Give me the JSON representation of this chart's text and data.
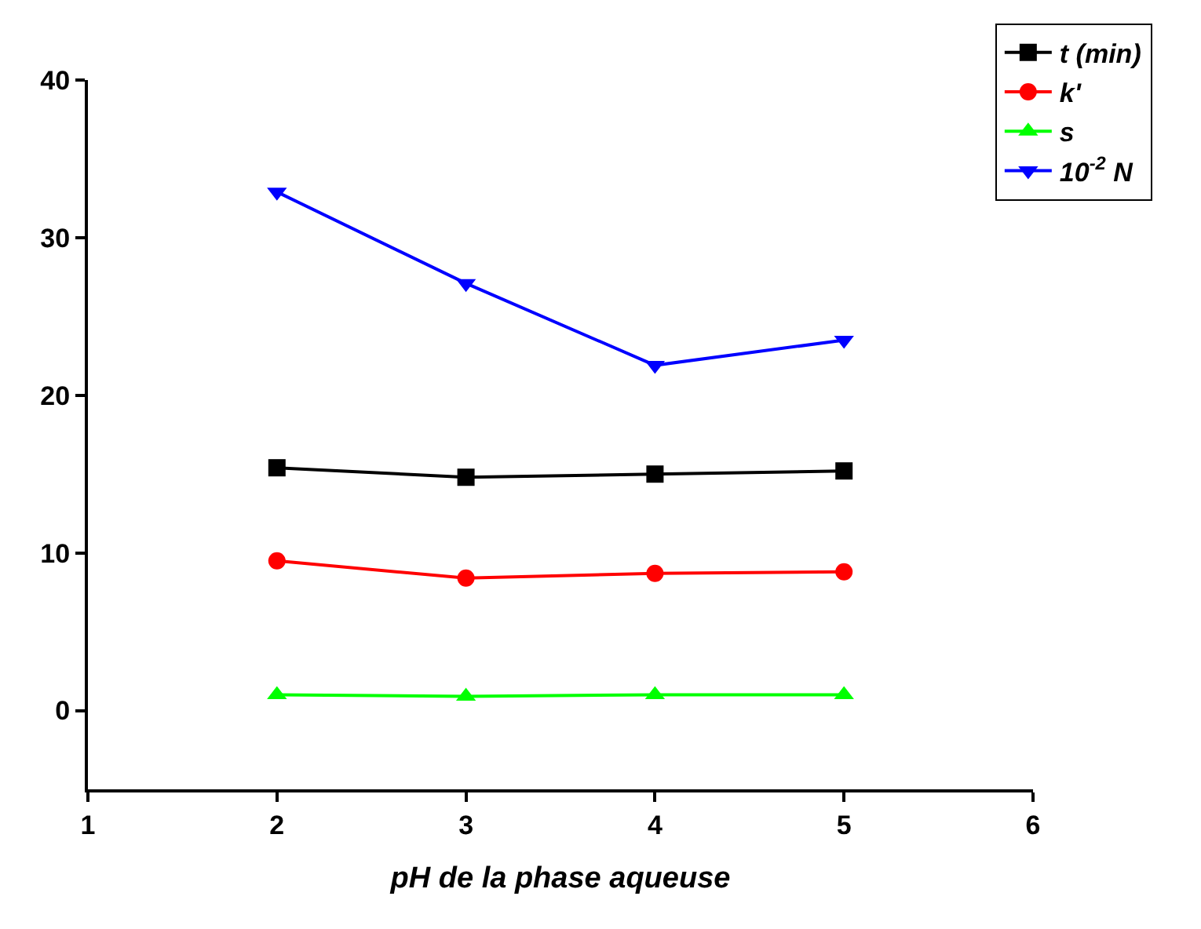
{
  "chart_data": {
    "type": "line",
    "xlabel": "pH de la phase aqueuse",
    "xlim": [
      1,
      6
    ],
    "xticks": [
      1,
      2,
      3,
      4,
      5,
      6
    ],
    "ylim": [
      -5,
      40
    ],
    "yticks": [
      0,
      10,
      20,
      30,
      40
    ],
    "legend": "top right",
    "line_style": "solid",
    "x": [
      2,
      3,
      4,
      5
    ],
    "series": [
      {
        "name": "t (min)",
        "color": "#000000",
        "marker": "square",
        "values": [
          15.4,
          14.8,
          15.0,
          15.2
        ]
      },
      {
        "name": "k'",
        "color": "#ff0000",
        "marker": "circle",
        "values": [
          9.5,
          8.4,
          8.7,
          8.8
        ]
      },
      {
        "name": "s",
        "color": "#00ff00",
        "marker": "triangle",
        "values": [
          1.0,
          0.9,
          1.0,
          1.0
        ]
      },
      {
        "name": "10$^{-2}$ N",
        "color": "#0000ff",
        "marker": "triangle-down",
        "values": [
          32.9,
          27.1,
          21.9,
          23.5
        ]
      }
    ]
  }
}
